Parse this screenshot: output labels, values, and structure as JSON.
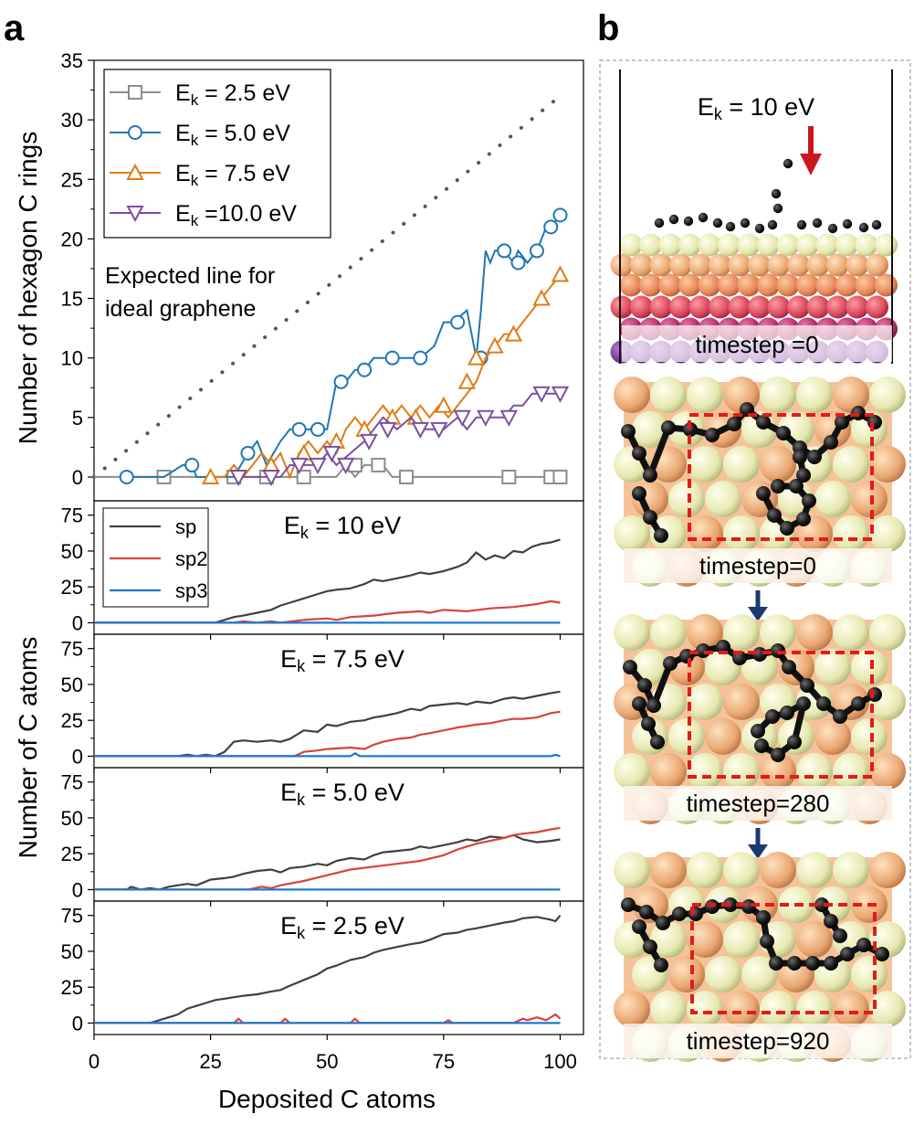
{
  "panel_a_label": "a",
  "panel_b_label": "b",
  "chart_data": [
    {
      "type": "line",
      "ylabel": "Number of hexagon C rings",
      "ylim": [
        0,
        35
      ],
      "yticks": [
        0,
        5,
        10,
        15,
        20,
        25,
        30,
        35
      ],
      "xlim": [
        0,
        100
      ],
      "annotation": [
        "Expected line for",
        "ideal graphene"
      ],
      "legend_position": "top-left",
      "ideal_line": {
        "x": [
          0,
          100
        ],
        "y": [
          0,
          32
        ]
      },
      "series": [
        {
          "name_base": "E",
          "name_sub": "k",
          "name_rest": " = 2.5  eV",
          "color": "#8c8c8c",
          "marker": "square",
          "x": [
            0,
            5,
            10,
            15,
            20,
            25,
            30,
            35,
            40,
            45,
            50,
            52,
            54,
            56,
            58,
            60,
            62,
            64,
            66,
            68,
            70,
            75,
            80,
            85,
            90,
            95,
            98,
            100
          ],
          "y": [
            0,
            0,
            0,
            0,
            0,
            0,
            0,
            0,
            0,
            0,
            0,
            0,
            1,
            0,
            1,
            1,
            1,
            0,
            0,
            0,
            0,
            0,
            0,
            0,
            0,
            0,
            0,
            0
          ],
          "markers_x": [
            15,
            30,
            37,
            45,
            56,
            61,
            67,
            89,
            98,
            100
          ],
          "markers_y": [
            0,
            0,
            0,
            0,
            1,
            1,
            0,
            0,
            0,
            0
          ]
        },
        {
          "name_base": "E",
          "name_sub": "k",
          "name_rest": " = 5.0  eV",
          "color": "#1f77b4",
          "marker": "circle",
          "x": [
            7,
            10,
            15,
            19,
            21,
            22,
            25,
            27,
            30,
            33,
            35,
            37,
            40,
            42,
            45,
            48,
            50,
            52,
            54,
            56,
            58,
            60,
            62,
            65,
            68,
            70,
            73,
            75,
            77,
            80,
            82,
            83,
            84,
            85,
            86,
            88,
            90,
            91,
            93,
            95,
            97,
            98,
            100
          ],
          "y": [
            0,
            0,
            0,
            1,
            1,
            0,
            0,
            0,
            0,
            2,
            3,
            1,
            3,
            4,
            4,
            4,
            4,
            8,
            8,
            9,
            9,
            10,
            10,
            10,
            10,
            10,
            11,
            13,
            13,
            14,
            10,
            14,
            19,
            18,
            19,
            19,
            18,
            19,
            18,
            19,
            21,
            21,
            22
          ],
          "markers_x": [
            7,
            21,
            33,
            44,
            48,
            53,
            58,
            64,
            70,
            78,
            83,
            88,
            91,
            95,
            98,
            100
          ],
          "markers_y": [
            0,
            1,
            2,
            4,
            4,
            8,
            9,
            10,
            10,
            13,
            10,
            19,
            18,
            19,
            21,
            22
          ]
        },
        {
          "name_base": "E",
          "name_sub": "k",
          "name_rest": " = 7.5  eV",
          "color": "#e07b14",
          "marker": "triangle-up",
          "x": [
            25,
            28,
            30,
            32,
            34,
            36,
            38,
            40,
            42,
            44,
            46,
            48,
            50,
            52,
            54,
            56,
            58,
            60,
            62,
            64,
            66,
            68,
            70,
            72,
            74,
            76,
            78,
            80,
            82,
            84,
            86,
            88,
            90,
            92,
            94,
            96,
            98,
            100
          ],
          "y": [
            0,
            0,
            1,
            0,
            1,
            2,
            1,
            2,
            0,
            2,
            3,
            2,
            3,
            2,
            4,
            5,
            4,
            5,
            6,
            5,
            6,
            5,
            6,
            5,
            6,
            5,
            6,
            7,
            8,
            10,
            11,
            12,
            12,
            13,
            14,
            15,
            16,
            17
          ],
          "markers_x": [
            25,
            38,
            45,
            52,
            58,
            64,
            69,
            75,
            80,
            82,
            86,
            90,
            96,
            100
          ],
          "markers_y": [
            0,
            1,
            2,
            3,
            4,
            5,
            5,
            6,
            8,
            10,
            11,
            12,
            15,
            17
          ]
        },
        {
          "name_base": "E",
          "name_sub": "k",
          "name_rest": " =10.0 eV",
          "color": "#7b4fa0",
          "marker": "triangle-down",
          "x": [
            30,
            32,
            35,
            38,
            40,
            42,
            45,
            48,
            50,
            52,
            55,
            58,
            60,
            62,
            65,
            68,
            70,
            72,
            75,
            78,
            80,
            82,
            85,
            88,
            90,
            92,
            94,
            96,
            98,
            100
          ],
          "y": [
            0,
            0,
            0,
            0,
            0,
            1,
            1,
            1,
            2,
            1,
            2,
            3,
            4,
            5,
            4,
            5,
            4,
            4,
            4,
            5,
            4,
            5,
            5,
            5,
            6,
            6,
            7,
            7,
            7,
            7
          ],
          "markers_x": [
            31,
            38,
            44,
            48,
            51,
            54,
            59,
            63,
            70,
            74,
            79,
            84,
            89,
            96,
            100
          ],
          "markers_y": [
            0,
            0,
            1,
            1,
            2,
            1,
            3,
            4,
            4,
            4,
            5,
            5,
            5,
            7,
            7
          ]
        }
      ]
    },
    {
      "type": "line",
      "title": "Ek = 10 eV",
      "title_base": "E",
      "title_sub": "k",
      "title_rest": " = 10 eV",
      "ylim": [
        0,
        85
      ],
      "yticks": [
        0,
        25,
        50,
        75
      ],
      "xlim": [
        0,
        100
      ],
      "legend": [
        "sp",
        "sp2",
        "sp3"
      ],
      "legend_position": "top-left",
      "series": [
        {
          "name": "sp",
          "color": "#404040",
          "x": [
            0,
            26,
            28,
            30,
            32,
            35,
            38,
            40,
            42,
            45,
            48,
            50,
            52,
            55,
            58,
            60,
            62,
            65,
            68,
            70,
            72,
            75,
            78,
            80,
            82,
            84,
            86,
            88,
            90,
            92,
            94,
            96,
            98,
            100
          ],
          "y": [
            0,
            0,
            2,
            4,
            5,
            7,
            9,
            12,
            14,
            17,
            20,
            22,
            23,
            24,
            27,
            30,
            29,
            31,
            33,
            35,
            34,
            36,
            39,
            42,
            49,
            44,
            47,
            45,
            50,
            49,
            53,
            55,
            56,
            58
          ]
        },
        {
          "name": "sp2",
          "color": "#d9423b",
          "x": [
            0,
            30,
            32,
            35,
            38,
            40,
            45,
            50,
            52,
            55,
            60,
            65,
            70,
            72,
            75,
            80,
            85,
            90,
            95,
            98,
            100
          ],
          "y": [
            0,
            0,
            1,
            0,
            1,
            0,
            2,
            3,
            2,
            4,
            5,
            7,
            8,
            7,
            9,
            8,
            10,
            11,
            13,
            15,
            14
          ]
        },
        {
          "name": "sp3",
          "color": "#1f77d0",
          "x": [
            0,
            100
          ],
          "y": [
            0,
            0
          ]
        }
      ]
    },
    {
      "type": "line",
      "title": "Ek = 7.5 eV",
      "title_base": "E",
      "title_sub": "k",
      "title_rest": " = 7.5 eV",
      "ylim": [
        0,
        85
      ],
      "yticks": [
        0,
        25,
        50,
        75
      ],
      "xlim": [
        0,
        100
      ],
      "series": [
        {
          "name": "sp",
          "color": "#404040",
          "x": [
            0,
            18,
            20,
            22,
            24,
            26,
            28,
            30,
            32,
            35,
            38,
            40,
            42,
            45,
            48,
            50,
            52,
            55,
            58,
            60,
            62,
            65,
            68,
            70,
            72,
            75,
            78,
            80,
            82,
            85,
            88,
            90,
            92,
            95,
            98,
            100
          ],
          "y": [
            0,
            0,
            1,
            0,
            1,
            0,
            3,
            10,
            11,
            10,
            11,
            10,
            12,
            18,
            17,
            22,
            21,
            24,
            25,
            27,
            28,
            30,
            33,
            32,
            35,
            36,
            37,
            36,
            38,
            37,
            40,
            41,
            40,
            42,
            44,
            45
          ]
        },
        {
          "name": "sp2",
          "color": "#d9423b",
          "x": [
            0,
            43,
            45,
            48,
            50,
            55,
            58,
            60,
            62,
            65,
            68,
            70,
            72,
            75,
            78,
            80,
            82,
            85,
            88,
            90,
            92,
            95,
            98,
            100
          ],
          "y": [
            0,
            0,
            3,
            4,
            5,
            6,
            5,
            8,
            10,
            12,
            13,
            15,
            16,
            18,
            20,
            21,
            22,
            23,
            25,
            26,
            26,
            27,
            30,
            31
          ]
        },
        {
          "name": "sp3",
          "color": "#1f77d0",
          "x": [
            0,
            55,
            56,
            57,
            58,
            98,
            99,
            100
          ],
          "y": [
            0,
            0,
            2,
            0,
            0,
            0,
            1,
            0
          ]
        }
      ]
    },
    {
      "type": "line",
      "title": "Ek = 5.0 eV",
      "title_base": "E",
      "title_sub": "k",
      "title_rest": " = 5.0 eV",
      "ylim": [
        0,
        85
      ],
      "yticks": [
        0,
        25,
        50,
        75
      ],
      "xlim": [
        0,
        100
      ],
      "series": [
        {
          "name": "sp",
          "color": "#404040",
          "x": [
            0,
            7,
            8,
            10,
            12,
            14,
            16,
            18,
            20,
            22,
            25,
            28,
            30,
            32,
            35,
            38,
            40,
            42,
            45,
            48,
            50,
            52,
            55,
            58,
            60,
            62,
            65,
            68,
            70,
            72,
            75,
            78,
            80,
            82,
            85,
            88,
            90,
            92,
            95,
            98,
            100
          ],
          "y": [
            0,
            0,
            2,
            0,
            1,
            0,
            2,
            3,
            4,
            3,
            7,
            8,
            9,
            11,
            13,
            14,
            12,
            15,
            16,
            18,
            17,
            20,
            22,
            21,
            24,
            26,
            27,
            28,
            30,
            29,
            31,
            33,
            35,
            34,
            37,
            36,
            38,
            35,
            33,
            34,
            35
          ]
        },
        {
          "name": "sp2",
          "color": "#d9423b",
          "x": [
            0,
            33,
            36,
            38,
            40,
            45,
            50,
            55,
            60,
            65,
            70,
            75,
            78,
            80,
            82,
            85,
            88,
            90,
            92,
            95,
            98,
            100
          ],
          "y": [
            0,
            0,
            2,
            1,
            3,
            6,
            10,
            14,
            16,
            18,
            20,
            24,
            28,
            30,
            32,
            34,
            36,
            38,
            39,
            40,
            42,
            43
          ]
        },
        {
          "name": "sp3",
          "color": "#1f77d0",
          "x": [
            0,
            100
          ],
          "y": [
            0,
            0
          ]
        }
      ]
    },
    {
      "type": "line",
      "title": "Ek = 2.5 eV",
      "title_base": "E",
      "title_sub": "k",
      "title_rest": " = 2.5 eV",
      "ylim": [
        0,
        85
      ],
      "yticks": [
        0,
        25,
        50,
        75
      ],
      "xlim": [
        0,
        100
      ],
      "xlabel": "Deposited C atoms",
      "xticks": [
        0,
        25,
        50,
        75,
        100
      ],
      "series": [
        {
          "name": "sp",
          "color": "#404040",
          "x": [
            0,
            12,
            14,
            16,
            18,
            20,
            22,
            24,
            26,
            28,
            30,
            32,
            35,
            38,
            40,
            42,
            45,
            48,
            50,
            52,
            55,
            58,
            60,
            62,
            65,
            68,
            70,
            72,
            75,
            78,
            80,
            82,
            85,
            88,
            90,
            92,
            95,
            98,
            99,
            100
          ],
          "y": [
            0,
            0,
            2,
            4,
            6,
            10,
            12,
            14,
            16,
            17,
            18,
            19,
            20,
            22,
            23,
            26,
            30,
            34,
            38,
            40,
            44,
            46,
            49,
            51,
            53,
            55,
            56,
            58,
            62,
            63,
            65,
            66,
            68,
            70,
            71,
            73,
            74,
            72,
            71,
            75
          ]
        },
        {
          "name": "sp2",
          "color": "#d9423b",
          "x": [
            0,
            30,
            31,
            32,
            33,
            40,
            41,
            42,
            43,
            55,
            56,
            57,
            75,
            76,
            77,
            90,
            92,
            93,
            95,
            97,
            99,
            100
          ],
          "y": [
            0,
            0,
            3,
            0,
            0,
            0,
            3,
            0,
            0,
            0,
            3,
            0,
            0,
            2,
            0,
            0,
            3,
            2,
            4,
            2,
            6,
            3
          ]
        },
        {
          "name": "sp3",
          "color": "#1f77d0",
          "x": [
            0,
            100
          ],
          "y": [
            0,
            0
          ]
        }
      ]
    }
  ],
  "shared_ylabel": "Number of C atoms",
  "panel_b": {
    "energy_label_base": "E",
    "energy_label_sub": "k",
    "energy_label_rest": " = 10 eV",
    "captions": [
      "timestep =0",
      "timestep=0",
      "timestep=280",
      "timestep=920"
    ],
    "colors": {
      "arrow_red": "#c8181e",
      "arrow_navy": "#1b3a6e",
      "box_red": "#e31a1c",
      "sphere_pale": "#eeefbf",
      "sphere_peach": "#efb380",
      "carbon": "#1a1a1a"
    }
  }
}
